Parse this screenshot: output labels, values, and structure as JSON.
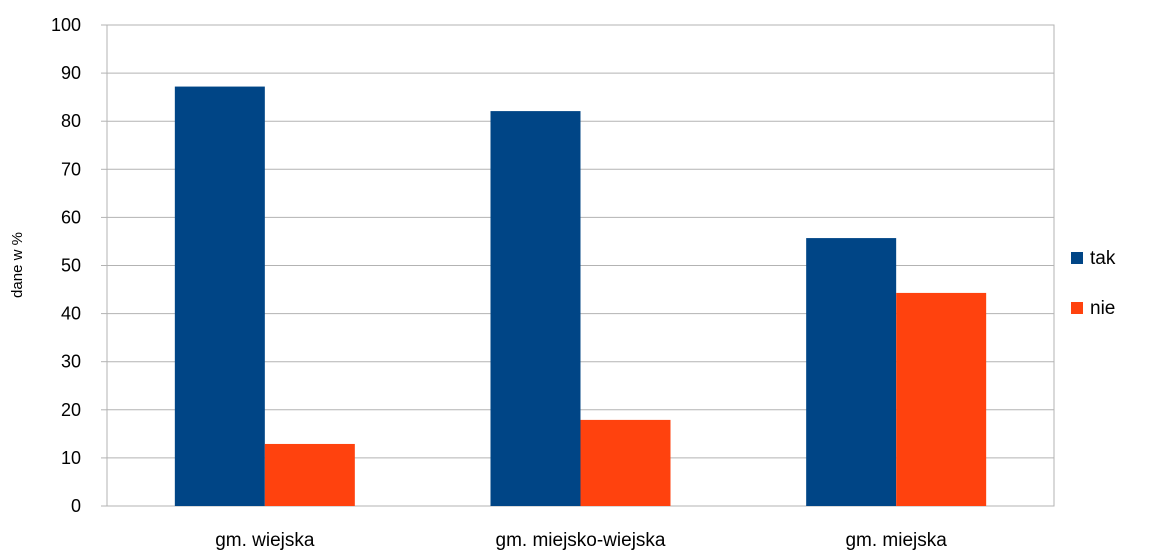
{
  "chart_data": {
    "type": "bar",
    "title": "",
    "xlabel": "",
    "ylabel": "dane w %",
    "ylim": [
      0,
      100
    ],
    "yticks": [
      0,
      10,
      20,
      30,
      40,
      50,
      60,
      70,
      80,
      90,
      100
    ],
    "grid": true,
    "legend_position": "right",
    "categories": [
      "gm. wiejska",
      "gm. miejsko-wiejska",
      "gm. miejska"
    ],
    "series": [
      {
        "name": "tak",
        "color": "#004586",
        "values": [
          87.2,
          82.1,
          55.7
        ]
      },
      {
        "name": "nie",
        "color": "#ff420e",
        "values": [
          12.9,
          17.9,
          44.3
        ]
      }
    ]
  }
}
